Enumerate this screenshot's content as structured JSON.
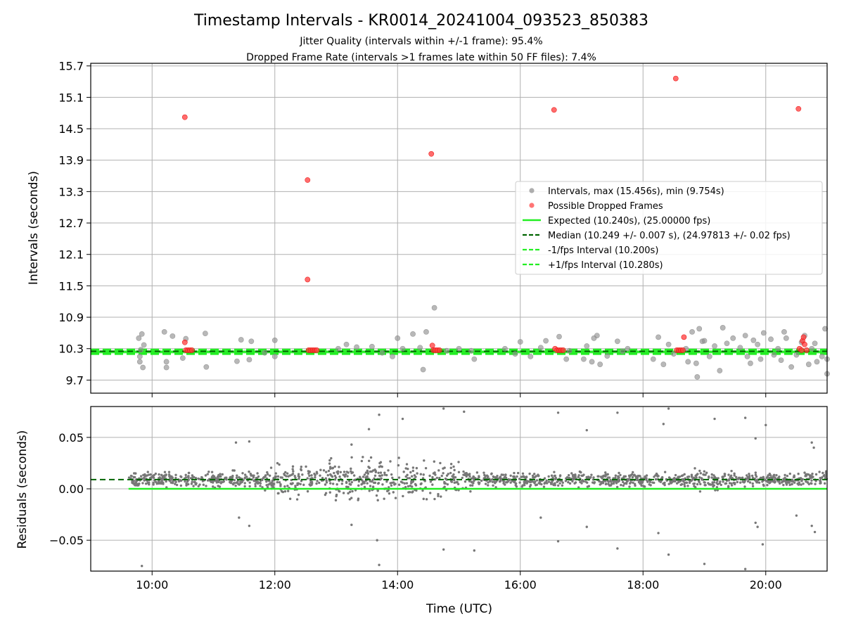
{
  "figure": {
    "title": "Timestamp Intervals - KR0014_20241004_093523_850383",
    "subtitle_1": "Jitter Quality (intervals within +/-1 frame): 95.4%",
    "subtitle_2": "Dropped Frame Rate (intervals >1 frames late within 50 FF files): 7.4%",
    "xlabel": "Time (UTC)"
  },
  "chart_data": [
    {
      "type": "scatter",
      "ylabel": "Intervals (seconds)",
      "xlim": [
        "09:00",
        "21:00"
      ],
      "ylim": [
        9.45,
        15.75
      ],
      "xticks": [
        "10:00",
        "12:00",
        "14:00",
        "16:00",
        "18:00",
        "20:00"
      ],
      "yticks": [
        "9.7",
        "10.3",
        "10.9",
        "11.5",
        "12.1",
        "12.7",
        "13.3",
        "13.9",
        "14.5",
        "15.1",
        "15.7"
      ],
      "grid": true,
      "legend_position": "center-right",
      "legend": [
        {
          "label": "Intervals, max (15.456s), min (9.754s)",
          "style": "marker",
          "color": "#8c8c8c"
        },
        {
          "label": "Possible Dropped Frames",
          "style": "marker",
          "color": "#ff3b3b"
        },
        {
          "label": "Expected (10.240s), (25.00000 fps)",
          "style": "solid",
          "color": "#22ee22"
        },
        {
          "label": "Median (10.249 +/- 0.007 s), (24.97813 +/- 0.02 fps)",
          "style": "dashed",
          "color": "#006400"
        },
        {
          "label": "-1/fps Interval (10.200s)",
          "style": "dashed",
          "color": "#22ee22"
        },
        {
          "label": "+1/fps Interval (10.280s)",
          "style": "dashed",
          "color": "#22ee22"
        }
      ],
      "series": [
        {
          "name": "Intervals, max (15.456s), min (9.754s)",
          "color": "#8c8c8c",
          "points": [
            [
              "09:47",
              10.5
            ],
            [
              "09:48",
              10.15
            ],
            [
              "09:50",
              10.58
            ],
            [
              "09:51",
              9.94
            ],
            [
              "09:52",
              10.37
            ],
            [
              "09:48",
              10.05
            ],
            [
              "09:49",
              10.28
            ],
            [
              "10:12",
              10.62
            ],
            [
              "10:14",
              10.05
            ],
            [
              "10:14",
              9.94
            ],
            [
              "10:20",
              10.54
            ],
            [
              "10:30",
              10.12
            ],
            [
              "10:33",
              10.49
            ],
            [
              "10:52",
              10.59
            ],
            [
              "10:53",
              9.95
            ],
            [
              "11:23",
              10.06
            ],
            [
              "11:27",
              10.47
            ],
            [
              "11:35",
              10.09
            ],
            [
              "11:37",
              10.44
            ],
            [
              "11:50",
              10.22
            ],
            [
              "12:00",
              10.46
            ],
            [
              "12:00",
              10.15
            ],
            [
              "13:02",
              10.3
            ],
            [
              "13:10",
              10.38
            ],
            [
              "13:20",
              10.33
            ],
            [
              "13:35",
              10.34
            ],
            [
              "13:45",
              10.22
            ],
            [
              "13:55",
              10.15
            ],
            [
              "14:00",
              10.5
            ],
            [
              "14:05",
              10.3
            ],
            [
              "14:15",
              10.58
            ],
            [
              "14:22",
              10.32
            ],
            [
              "14:25",
              9.9
            ],
            [
              "14:28",
              10.62
            ],
            [
              "14:36",
              11.08
            ],
            [
              "14:48",
              10.26
            ],
            [
              "15:00",
              10.3
            ],
            [
              "15:12",
              10.26
            ],
            [
              "15:15",
              10.1
            ],
            [
              "15:45",
              10.3
            ],
            [
              "15:55",
              10.2
            ],
            [
              "16:00",
              10.43
            ],
            [
              "16:10",
              10.15
            ],
            [
              "16:20",
              10.32
            ],
            [
              "16:25",
              10.45
            ],
            [
              "16:38",
              10.53
            ],
            [
              "16:45",
              10.1
            ],
            [
              "16:48",
              10.26
            ],
            [
              "17:02",
              10.1
            ],
            [
              "17:05",
              10.35
            ],
            [
              "17:10",
              10.05
            ],
            [
              "17:12",
              10.5
            ],
            [
              "17:15",
              10.55
            ],
            [
              "17:18",
              10.0
            ],
            [
              "17:25",
              10.16
            ],
            [
              "17:35",
              10.44
            ],
            [
              "17:40",
              10.25
            ],
            [
              "17:45",
              10.3
            ],
            [
              "18:10",
              10.1
            ],
            [
              "18:15",
              10.52
            ],
            [
              "18:20",
              10.0
            ],
            [
              "18:25",
              10.38
            ],
            [
              "18:30",
              10.2
            ],
            [
              "18:42",
              10.3
            ],
            [
              "18:44",
              10.05
            ],
            [
              "18:48",
              10.62
            ],
            [
              "18:52",
              10.02
            ],
            [
              "18:55",
              10.68
            ],
            [
              "18:58",
              10.44
            ],
            [
              "18:53",
              9.76
            ],
            [
              "19:00",
              10.45
            ],
            [
              "19:05",
              10.15
            ],
            [
              "19:10",
              10.35
            ],
            [
              "19:15",
              9.88
            ],
            [
              "19:18",
              10.7
            ],
            [
              "19:22",
              10.4
            ],
            [
              "19:28",
              10.5
            ],
            [
              "19:35",
              10.32
            ],
            [
              "19:40",
              10.55
            ],
            [
              "19:42",
              10.15
            ],
            [
              "19:45",
              10.02
            ],
            [
              "19:48",
              10.46
            ],
            [
              "19:52",
              10.38
            ],
            [
              "19:55",
              10.1
            ],
            [
              "19:58",
              10.6
            ],
            [
              "20:05",
              10.48
            ],
            [
              "20:08",
              10.18
            ],
            [
              "20:12",
              10.3
            ],
            [
              "20:18",
              10.62
            ],
            [
              "20:20",
              10.5
            ],
            [
              "20:25",
              9.95
            ],
            [
              "20:30",
              10.18
            ],
            [
              "20:35",
              10.42
            ],
            [
              "20:38",
              10.55
            ],
            [
              "20:45",
              10.3
            ],
            [
              "20:48",
              10.4
            ],
            [
              "20:50",
              10.05
            ],
            [
              "20:55",
              10.15
            ],
            [
              "20:58",
              10.68
            ],
            [
              "21:00",
              9.82
            ],
            [
              "21:00",
              10.1
            ],
            [
              "20:42",
              10.0
            ],
            [
              "20:15",
              10.08
            ]
          ]
        },
        {
          "name": "Possible Dropped Frames",
          "color": "#ff3b3b",
          "points": [
            [
              "10:32",
              14.72
            ],
            [
              "10:32",
              10.42
            ],
            [
              "10:33",
              10.27
            ],
            [
              "10:35",
              10.27
            ],
            [
              "10:37",
              10.27
            ],
            [
              "10:39",
              10.27
            ],
            [
              "12:32",
              13.52
            ],
            [
              "12:32",
              11.62
            ],
            [
              "12:33",
              10.27
            ],
            [
              "12:35",
              10.27
            ],
            [
              "12:37",
              10.27
            ],
            [
              "12:39",
              10.27
            ],
            [
              "12:41",
              10.27
            ],
            [
              "14:33",
              14.02
            ],
            [
              "14:34",
              10.36
            ],
            [
              "14:35",
              10.27
            ],
            [
              "14:37",
              10.27
            ],
            [
              "14:39",
              10.27
            ],
            [
              "14:41",
              10.27
            ],
            [
              "16:33",
              14.86
            ],
            [
              "16:34",
              10.3
            ],
            [
              "16:36",
              10.27
            ],
            [
              "16:38",
              10.27
            ],
            [
              "16:40",
              10.27
            ],
            [
              "16:42",
              10.27
            ],
            [
              "18:32",
              15.46
            ],
            [
              "18:33",
              10.27
            ],
            [
              "18:35",
              10.27
            ],
            [
              "18:37",
              10.27
            ],
            [
              "18:39",
              10.27
            ],
            [
              "18:40",
              10.52
            ],
            [
              "20:32",
              14.88
            ],
            [
              "20:33",
              10.3
            ],
            [
              "20:35",
              10.27
            ],
            [
              "20:36",
              10.45
            ],
            [
              "20:37",
              10.52
            ],
            [
              "20:38",
              10.38
            ],
            [
              "20:40",
              10.27
            ]
          ]
        },
        {
          "name": "Expected (10.240s), (25.00000 fps)",
          "type": "hline",
          "y": 10.24
        },
        {
          "name": "Median (10.249 +/- 0.007 s), (24.97813 +/- 0.02 fps)",
          "type": "hline",
          "y": 10.249
        },
        {
          "name": "-1/fps Interval (10.200s)",
          "type": "hline",
          "y": 10.2
        },
        {
          "name": "+1/fps Interval (10.280s)",
          "type": "hline",
          "y": 10.28
        }
      ]
    },
    {
      "type": "scatter",
      "ylabel": "Residuals (seconds)",
      "xlim": [
        "09:00",
        "21:00"
      ],
      "ylim": [
        -0.08,
        0.08
      ],
      "xticks": [
        "10:00",
        "12:00",
        "14:00",
        "16:00",
        "18:00",
        "20:00"
      ],
      "yticks": [
        "−0.05",
        "0.00",
        "0.05"
      ],
      "grid": true,
      "series": [
        {
          "name": "Residuals",
          "color": "#777777",
          "x_range": [
            "09:37",
            "21:00"
          ],
          "band_center": 0.009,
          "points": [
            [
              "13:42",
              0.072
            ],
            [
              "13:32",
              0.058
            ],
            [
              "14:05",
              0.068
            ],
            [
              "14:45",
              0.078
            ],
            [
              "15:05",
              0.075
            ],
            [
              "16:37",
              0.074
            ],
            [
              "17:05",
              0.057
            ],
            [
              "17:35",
              0.074
            ],
            [
              "18:20",
              0.063
            ],
            [
              "18:25",
              0.078
            ],
            [
              "19:10",
              0.068
            ],
            [
              "19:40",
              0.069
            ],
            [
              "19:50",
              0.049
            ],
            [
              "20:00",
              0.062
            ],
            [
              "20:45",
              0.045
            ],
            [
              "20:47",
              0.04
            ],
            [
              "11:22",
              0.045
            ],
            [
              "11:35",
              0.046
            ],
            [
              "13:15",
              0.043
            ],
            [
              "09:50",
              -0.075
            ],
            [
              "11:25",
              -0.028
            ],
            [
              "11:35",
              -0.036
            ],
            [
              "13:40",
              -0.05
            ],
            [
              "13:42",
              -0.074
            ],
            [
              "13:15",
              -0.035
            ],
            [
              "14:45",
              -0.059
            ],
            [
              "15:15",
              -0.06
            ],
            [
              "16:20",
              -0.028
            ],
            [
              "16:37",
              -0.051
            ],
            [
              "17:05",
              -0.037
            ],
            [
              "17:35",
              -0.058
            ],
            [
              "18:15",
              -0.043
            ],
            [
              "18:25",
              -0.064
            ],
            [
              "19:00",
              -0.073
            ],
            [
              "19:40",
              -0.078
            ],
            [
              "19:50",
              -0.033
            ],
            [
              "19:52",
              -0.037
            ],
            [
              "19:57",
              -0.054
            ],
            [
              "20:30",
              -0.026
            ],
            [
              "20:45",
              -0.036
            ],
            [
              "20:48",
              -0.042
            ]
          ]
        },
        {
          "name": "Expected",
          "type": "hline",
          "y": 0.0
        },
        {
          "name": "Median",
          "type": "hline",
          "y": 0.009
        }
      ]
    }
  ]
}
